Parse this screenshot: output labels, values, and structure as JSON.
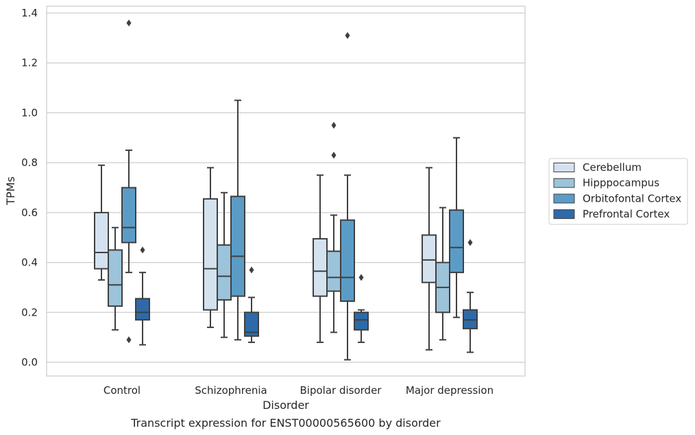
{
  "chart_data": {
    "type": "box",
    "title": "",
    "caption": "Transcript expression for ENST00000565600 by disorder",
    "xlabel": "Disorder",
    "ylabel": "TPMs",
    "ylim": [
      -0.055,
      1.43
    ],
    "yticks": [
      "0.0",
      "0.2",
      "0.4",
      "0.6",
      "0.8",
      "1.0",
      "1.2",
      "1.4"
    ],
    "ytick_values": [
      0,
      0.2,
      0.4,
      0.6,
      0.8,
      1.0,
      1.2,
      1.4
    ],
    "grid": "horizontal",
    "legend_position": "right",
    "categories": [
      "Control",
      "Schizophrenia",
      "Bipolar disorder",
      "Major depression"
    ],
    "series": [
      {
        "name": "Cerebellum",
        "color": "#d4e2f0",
        "boxes": [
          {
            "whislo": 0.33,
            "q1": 0.375,
            "med": 0.44,
            "q3": 0.6,
            "whishi": 0.79,
            "fliers": []
          },
          {
            "whislo": 0.14,
            "q1": 0.21,
            "med": 0.375,
            "q3": 0.655,
            "whishi": 0.78,
            "fliers": []
          },
          {
            "whislo": 0.08,
            "q1": 0.265,
            "med": 0.365,
            "q3": 0.495,
            "whishi": 0.75,
            "fliers": []
          },
          {
            "whislo": 0.05,
            "q1": 0.32,
            "med": 0.41,
            "q3": 0.51,
            "whishi": 0.78,
            "fliers": []
          }
        ]
      },
      {
        "name": "Hipppocampus",
        "color": "#9bc3da",
        "boxes": [
          {
            "whislo": 0.13,
            "q1": 0.225,
            "med": 0.31,
            "q3": 0.45,
            "whishi": 0.54,
            "fliers": []
          },
          {
            "whislo": 0.1,
            "q1": 0.25,
            "med": 0.345,
            "q3": 0.47,
            "whishi": 0.68,
            "fliers": []
          },
          {
            "whislo": 0.12,
            "q1": 0.285,
            "med": 0.34,
            "q3": 0.445,
            "whishi": 0.59,
            "fliers": [
              0.95,
              0.83
            ]
          },
          {
            "whislo": 0.09,
            "q1": 0.2,
            "med": 0.3,
            "q3": 0.4,
            "whishi": 0.62,
            "fliers": []
          }
        ]
      },
      {
        "name": "Orbitofontal Cortex",
        "color": "#5b9cc6",
        "boxes": [
          {
            "whislo": 0.36,
            "q1": 0.48,
            "med": 0.54,
            "q3": 0.7,
            "whishi": 0.85,
            "fliers": [
              1.36,
              0.09
            ]
          },
          {
            "whislo": 0.09,
            "q1": 0.265,
            "med": 0.425,
            "q3": 0.665,
            "whishi": 1.05,
            "fliers": []
          },
          {
            "whislo": 0.01,
            "q1": 0.245,
            "med": 0.34,
            "q3": 0.57,
            "whishi": 0.75,
            "fliers": [
              1.31
            ]
          },
          {
            "whislo": 0.18,
            "q1": 0.36,
            "med": 0.46,
            "q3": 0.61,
            "whishi": 0.9,
            "fliers": []
          }
        ]
      },
      {
        "name": "Prefrontal Cortex",
        "color": "#2e6aa8",
        "boxes": [
          {
            "whislo": 0.07,
            "q1": 0.17,
            "med": 0.2,
            "q3": 0.255,
            "whishi": 0.36,
            "fliers": [
              0.45
            ]
          },
          {
            "whislo": 0.08,
            "q1": 0.105,
            "med": 0.12,
            "q3": 0.2,
            "whishi": 0.26,
            "fliers": [
              0.37
            ]
          },
          {
            "whislo": 0.08,
            "q1": 0.13,
            "med": 0.17,
            "q3": 0.2,
            "whishi": 0.21,
            "fliers": [
              0.34
            ]
          },
          {
            "whislo": 0.04,
            "q1": 0.135,
            "med": 0.17,
            "q3": 0.21,
            "whishi": 0.28,
            "fliers": [
              0.48
            ]
          }
        ]
      }
    ]
  }
}
